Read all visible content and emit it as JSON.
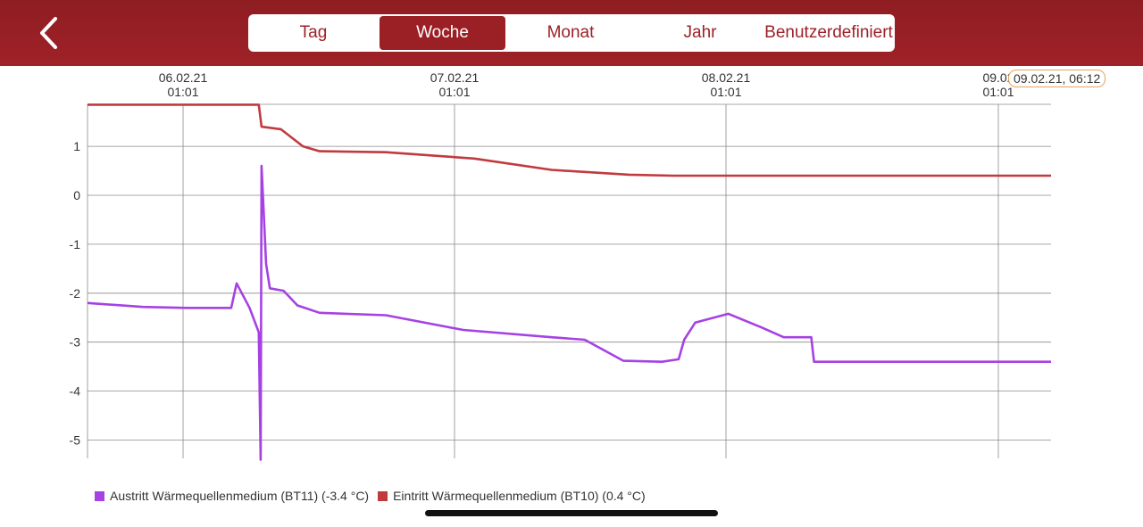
{
  "header": {
    "back_icon": "chevron-left-icon",
    "tabs": [
      {
        "label": "Tag",
        "active": false
      },
      {
        "label": "Woche",
        "active": true
      },
      {
        "label": "Monat",
        "active": false
      },
      {
        "label": "Jahr",
        "active": false
      },
      {
        "label": "Benutzerdefiniert",
        "active": false
      }
    ],
    "accent_color": "#9b2026"
  },
  "tooltip": "09.02.21, 06:12",
  "chart_data": {
    "type": "line",
    "x_tick_labels": [
      {
        "date": "06.02.21",
        "time": "01:01"
      },
      {
        "date": "07.02.21",
        "time": "01:01"
      },
      {
        "date": "08.02.21",
        "time": "01:01"
      },
      {
        "date": "09.02",
        "time": "01:01"
      }
    ],
    "y_tick_labels": [
      "1",
      "0",
      "-1",
      "-2",
      "-3",
      "-4",
      "-5"
    ],
    "ylim": [
      -5.4,
      1.85
    ],
    "xlim": [
      "2021-02-05 15:00",
      "2021-02-09 06:12"
    ],
    "grid": true,
    "legend_position": "bottom-left",
    "series": [
      {
        "name": "Austritt Wärmequellenmedium (BT11)",
        "legend_value": "(-3.4 °C)",
        "color": "#a542e3",
        "points": [
          [
            "2021-02-05 15:00",
            -2.2
          ],
          [
            "2021-02-05 20:00",
            -2.28
          ],
          [
            "2021-02-06 00:00",
            -2.3
          ],
          [
            "2021-02-06 04:00",
            -2.3
          ],
          [
            "2021-02-06 04:30",
            -1.8
          ],
          [
            "2021-02-06 05:40",
            -2.3
          ],
          [
            "2021-02-06 06:30",
            -2.8
          ],
          [
            "2021-02-06 06:40",
            -5.4
          ],
          [
            "2021-02-06 06:45",
            0.6
          ],
          [
            "2021-02-06 07:10",
            -1.4
          ],
          [
            "2021-02-06 07:30",
            -1.9
          ],
          [
            "2021-02-06 08:45",
            -1.95
          ],
          [
            "2021-02-06 10:00",
            -2.25
          ],
          [
            "2021-02-06 12:00",
            -2.4
          ],
          [
            "2021-02-06 18:00",
            -2.45
          ],
          [
            "2021-02-07 01:00",
            -2.75
          ],
          [
            "2021-02-07 09:00",
            -2.9
          ],
          [
            "2021-02-07 12:00",
            -2.95
          ],
          [
            "2021-02-07 15:30",
            -3.38
          ],
          [
            "2021-02-07 19:00",
            -3.4
          ],
          [
            "2021-02-07 20:30",
            -3.35
          ],
          [
            "2021-02-07 21:00",
            -2.95
          ],
          [
            "2021-02-07 22:00",
            -2.6
          ],
          [
            "2021-02-08 01:00",
            -2.42
          ],
          [
            "2021-02-08 04:00",
            -2.7
          ],
          [
            "2021-02-08 06:00",
            -2.9
          ],
          [
            "2021-02-08 08:30",
            -2.9
          ],
          [
            "2021-02-08 08:45",
            -3.4
          ],
          [
            "2021-02-08 14:00",
            -3.4
          ],
          [
            "2021-02-09 06:12",
            -3.4
          ]
        ]
      },
      {
        "name": "Eintritt Wärmequellenmedium (BT10)",
        "legend_value": "(0.4 °C)",
        "color": "#c03a3f",
        "points": [
          [
            "2021-02-05 15:00",
            1.85
          ],
          [
            "2021-02-06 06:30",
            1.85
          ],
          [
            "2021-02-06 06:45",
            1.4
          ],
          [
            "2021-02-06 08:30",
            1.35
          ],
          [
            "2021-02-06 10:30",
            1.0
          ],
          [
            "2021-02-06 12:00",
            0.9
          ],
          [
            "2021-02-06 18:00",
            0.88
          ],
          [
            "2021-02-07 02:00",
            0.75
          ],
          [
            "2021-02-07 09:00",
            0.52
          ],
          [
            "2021-02-07 16:00",
            0.42
          ],
          [
            "2021-02-07 20:00",
            0.4
          ],
          [
            "2021-02-09 06:12",
            0.4
          ]
        ]
      }
    ]
  }
}
